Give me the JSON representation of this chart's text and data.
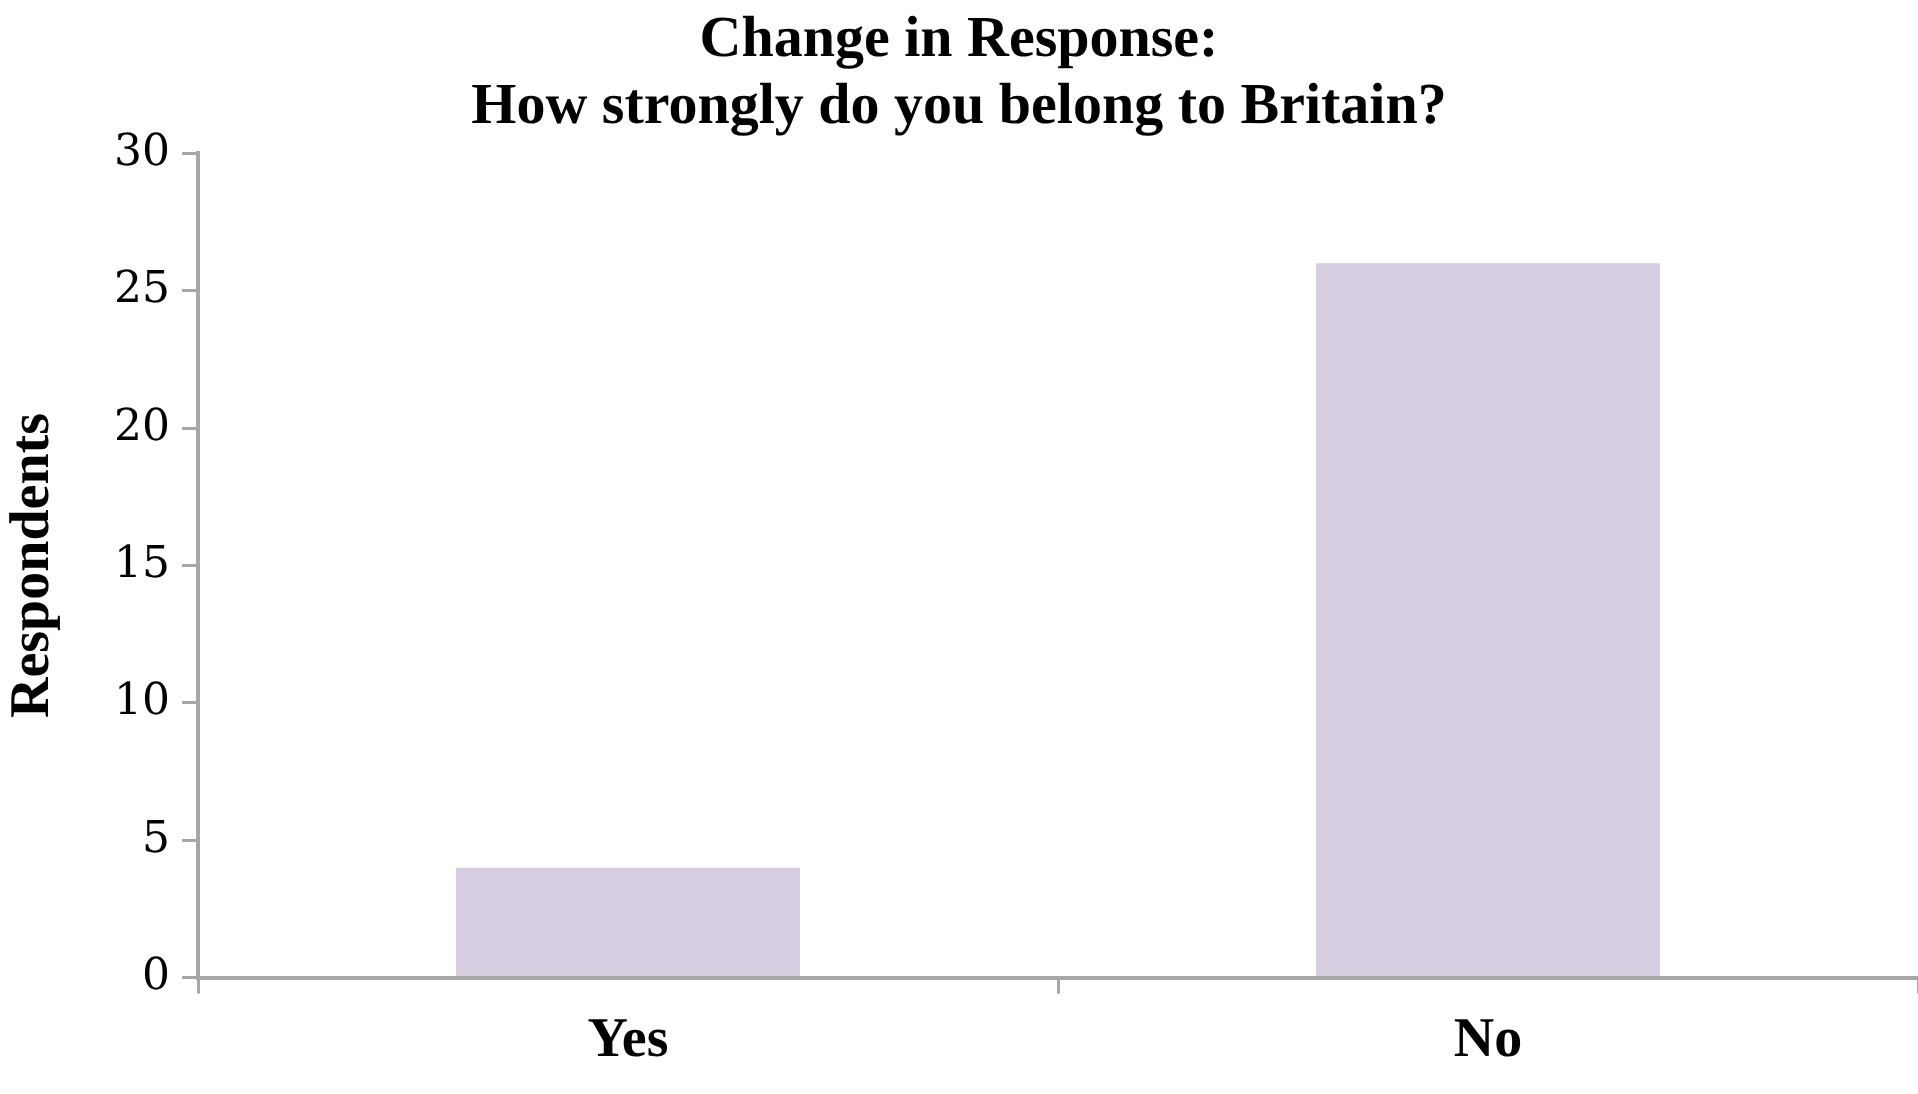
{
  "chart_data": {
    "type": "bar",
    "title": "Change in Response:\nHow strongly do you belong to Britain?",
    "ylabel": "Respondents",
    "categories": [
      "Yes",
      "No"
    ],
    "values": [
      4,
      26
    ],
    "color": "#d6cde1",
    "ylim": [
      0,
      30
    ],
    "yticks": [
      0,
      5,
      10,
      15,
      20,
      25,
      30
    ]
  }
}
